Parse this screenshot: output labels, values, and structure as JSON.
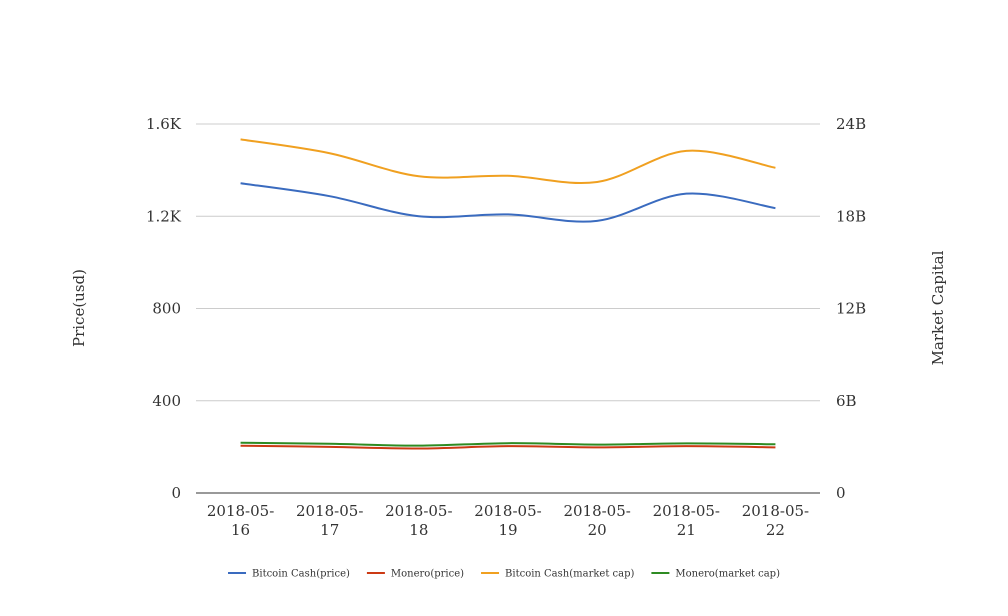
{
  "chart_data": {
    "type": "line",
    "title": "",
    "x": [
      "2018-05-16",
      "2018-05-17",
      "2018-05-18",
      "2018-05-19",
      "2018-05-20",
      "2018-05-21",
      "2018-05-22"
    ],
    "x_tick_lines": [
      [
        "2018-05-",
        "16"
      ],
      [
        "2018-05-",
        "17"
      ],
      [
        "2018-05-",
        "18"
      ],
      [
        "2018-05-",
        "19"
      ],
      [
        "2018-05-",
        "20"
      ],
      [
        "2018-05-",
        "21"
      ],
      [
        "2018-05-",
        "22"
      ]
    ],
    "y_left": {
      "label": "Price(usd)",
      "range": [
        0,
        1600
      ],
      "ticks": [
        0,
        400,
        800,
        1200,
        1600
      ],
      "tick_labels": [
        "0",
        "400",
        "800",
        "1.2K",
        "1.6K"
      ]
    },
    "y_right": {
      "label": "Market Capital",
      "range": [
        0,
        24000000000
      ],
      "ticks": [
        0,
        6000000000,
        12000000000,
        18000000000,
        24000000000
      ],
      "tick_labels": [
        "0",
        "6B",
        "12B",
        "18B",
        "24B"
      ]
    },
    "grid": true,
    "legend_position": "bottom",
    "series": [
      {
        "name": "Bitcoin Cash(price)",
        "axis": "left",
        "color": "#3a6bbf",
        "values": [
          1343,
          1287,
          1200,
          1208,
          1180,
          1298,
          1235
        ]
      },
      {
        "name": "Monero(price)",
        "axis": "left",
        "color": "#cc3a14",
        "values": [
          205,
          200,
          193,
          203,
          198,
          203,
          198
        ]
      },
      {
        "name": "Bitcoin Cash(market cap)",
        "axis": "right",
        "color": "#f0a020",
        "values": [
          23000000000,
          22100000000,
          20600000000,
          20630000000,
          20230000000,
          22250000000,
          21150000000
        ]
      },
      {
        "name": "Monero(market cap)",
        "axis": "right",
        "color": "#2e8b22",
        "values": [
          3270000000,
          3200000000,
          3080000000,
          3240000000,
          3150000000,
          3230000000,
          3170000000
        ]
      }
    ]
  }
}
